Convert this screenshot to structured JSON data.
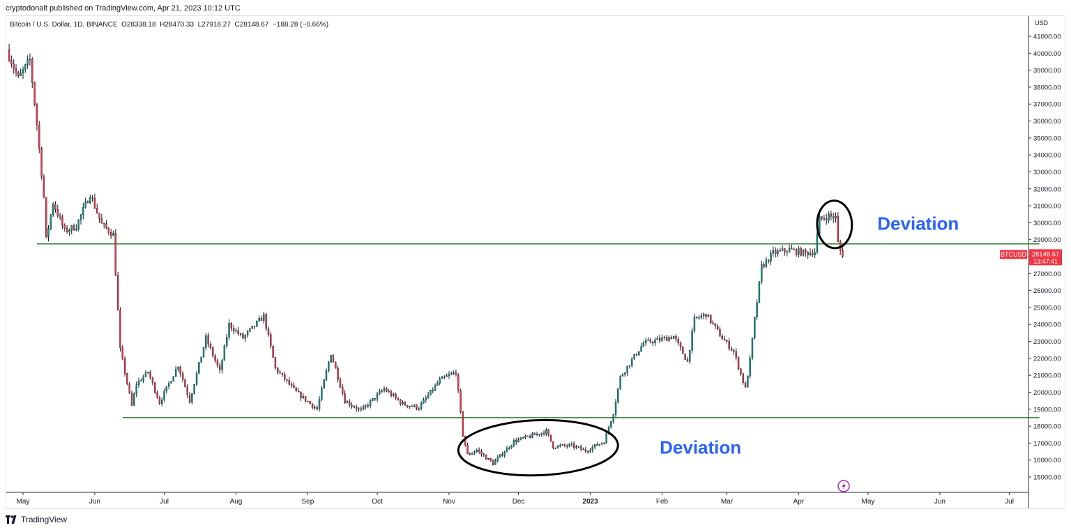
{
  "header": {
    "published": "cryptodonalt published on TradingView.com, Apr 21, 2023 10:12 UTC"
  },
  "legend": {
    "symbol": "Bitcoin / U.S. Dollar, 1D, BINANCE",
    "open": "O28338.18",
    "high": "H28470.33",
    "low": "L27918.27",
    "close": "C28148.67",
    "change": "−188.28 (−0.66%)"
  },
  "footer": {
    "brand": "TradingView"
  },
  "colors": {
    "up": "#089981",
    "down": "#f23645",
    "wick": "#131722",
    "level_line": "#2e7d32",
    "annotation_text": "#2962ff",
    "price_tag": "#f23645",
    "flash_icon": "#9c27b0"
  },
  "chart_data": {
    "type": "candlestick",
    "currency": "USD",
    "ylim": [
      14500,
      41500
    ],
    "y_ticks": [
      "15000.00",
      "16000.00",
      "17000.00",
      "18000.00",
      "19000.00",
      "20000.00",
      "21000.00",
      "22000.00",
      "23000.00",
      "24000.00",
      "25000.00",
      "26000.00",
      "27000.00",
      "28000.00",
      "29000.00",
      "30000.00",
      "31000.00",
      "32000.00",
      "33000.00",
      "34000.00",
      "35000.00",
      "36000.00",
      "37000.00",
      "38000.00",
      "39000.00",
      "40000.00",
      "41000.00"
    ],
    "x_ticks": [
      {
        "date": "2022-05-01",
        "label": "May",
        "bold": false
      },
      {
        "date": "2022-06-01",
        "label": "Jun",
        "bold": false
      },
      {
        "date": "2022-07-01",
        "label": "Jul",
        "bold": false
      },
      {
        "date": "2022-08-01",
        "label": "Aug",
        "bold": false
      },
      {
        "date": "2022-09-01",
        "label": "Sep",
        "bold": false
      },
      {
        "date": "2022-10-01",
        "label": "Oct",
        "bold": false
      },
      {
        "date": "2022-11-01",
        "label": "Nov",
        "bold": false
      },
      {
        "date": "2022-12-01",
        "label": "Dec",
        "bold": false
      },
      {
        "date": "2023-01-01",
        "label": "2023",
        "bold": true
      },
      {
        "date": "2023-02-01",
        "label": "Feb",
        "bold": false
      },
      {
        "date": "2023-03-01",
        "label": "Mar",
        "bold": false
      },
      {
        "date": "2023-04-01",
        "label": "Apr",
        "bold": false
      },
      {
        "date": "2023-05-01",
        "label": "May",
        "bold": false
      },
      {
        "date": "2023-06-01",
        "label": "Jun",
        "bold": false
      },
      {
        "date": "2023-07-01",
        "label": "Jul",
        "bold": false
      }
    ],
    "price_path": [
      [
        "2022-04-25",
        40200
      ],
      [
        "2022-04-30",
        38500
      ],
      [
        "2022-05-05",
        39600
      ],
      [
        "2022-05-08",
        35800
      ],
      [
        "2022-05-11",
        31500
      ],
      [
        "2022-05-12",
        29000
      ],
      [
        "2022-05-15",
        31200
      ],
      [
        "2022-05-20",
        29500
      ],
      [
        "2022-05-25",
        29800
      ],
      [
        "2022-05-31",
        31700
      ],
      [
        "2022-06-05",
        29900
      ],
      [
        "2022-06-10",
        29300
      ],
      [
        "2022-06-13",
        22500
      ],
      [
        "2022-06-18",
        19200
      ],
      [
        "2022-06-20",
        20500
      ],
      [
        "2022-06-25",
        21200
      ],
      [
        "2022-06-30",
        19400
      ],
      [
        "2022-07-08",
        21600
      ],
      [
        "2022-07-13",
        19500
      ],
      [
        "2022-07-20",
        23200
      ],
      [
        "2022-07-26",
        21200
      ],
      [
        "2022-07-30",
        24000
      ],
      [
        "2022-08-05",
        23200
      ],
      [
        "2022-08-14",
        24500
      ],
      [
        "2022-08-19",
        21400
      ],
      [
        "2022-08-28",
        20000
      ],
      [
        "2022-09-06",
        19000
      ],
      [
        "2022-09-12",
        22300
      ],
      [
        "2022-09-18",
        19500
      ],
      [
        "2022-09-25",
        18900
      ],
      [
        "2022-10-05",
        20200
      ],
      [
        "2022-10-13",
        19300
      ],
      [
        "2022-10-20",
        19100
      ],
      [
        "2022-10-29",
        20700
      ],
      [
        "2022-11-05",
        21200
      ],
      [
        "2022-11-08",
        17500
      ],
      [
        "2022-11-10",
        16300
      ],
      [
        "2022-11-14",
        16600
      ],
      [
        "2022-11-21",
        15800
      ],
      [
        "2022-11-30",
        17100
      ],
      [
        "2022-12-14",
        17700
      ],
      [
        "2022-12-17",
        16800
      ],
      [
        "2022-12-25",
        16850
      ],
      [
        "2022-12-31",
        16550
      ],
      [
        "2023-01-08",
        17100
      ],
      [
        "2023-01-12",
        18800
      ],
      [
        "2023-01-15",
        20900
      ],
      [
        "2023-01-25",
        22900
      ],
      [
        "2023-02-01",
        23100
      ],
      [
        "2023-02-07",
        23300
      ],
      [
        "2023-02-13",
        21800
      ],
      [
        "2023-02-16",
        24300
      ],
      [
        "2023-02-21",
        24600
      ],
      [
        "2023-02-28",
        23200
      ],
      [
        "2023-03-05",
        22400
      ],
      [
        "2023-03-10",
        20200
      ],
      [
        "2023-03-12",
        21900
      ],
      [
        "2023-03-14",
        24300
      ],
      [
        "2023-03-17",
        27400
      ],
      [
        "2023-03-22",
        28200
      ],
      [
        "2023-03-29",
        28400
      ],
      [
        "2023-04-05",
        28200
      ],
      [
        "2023-04-09",
        28300
      ],
      [
        "2023-04-11",
        30200
      ],
      [
        "2023-04-15",
        30400
      ],
      [
        "2023-04-18",
        30300
      ],
      [
        "2023-04-19",
        28800
      ],
      [
        "2023-04-20",
        28340
      ],
      [
        "2023-04-21",
        28149
      ]
    ],
    "levels": [
      {
        "price": 28750,
        "from": "2022-05-07",
        "to": "2023-07-14"
      },
      {
        "price": 18500,
        "from": "2022-06-13",
        "to": "2023-07-14"
      }
    ],
    "annotations": [
      {
        "text": "Deviation",
        "date": "2023-05-05",
        "price": 29950
      },
      {
        "text": "Deviation",
        "date": "2023-01-31",
        "price": 16750
      }
    ],
    "circled_zones": [
      {
        "from": "2022-11-05",
        "to": "2023-01-13",
        "price_high": 18350,
        "price_low": 15100
      },
      {
        "from": "2023-04-09",
        "to": "2023-04-24",
        "price_high": 31300,
        "price_low": 28500
      }
    ],
    "last_price": {
      "symbol": "BTCUSD",
      "value": "28148.67",
      "countdown": "13:47:41"
    }
  }
}
